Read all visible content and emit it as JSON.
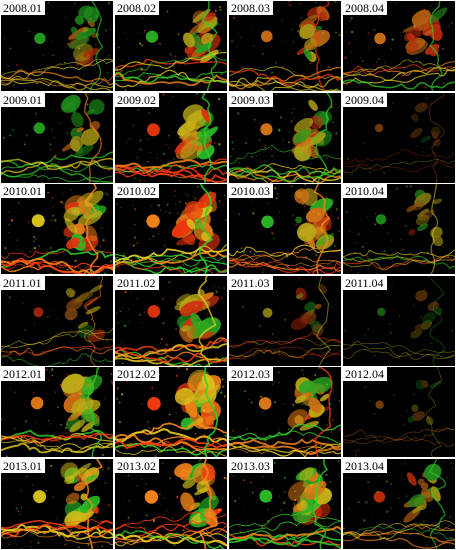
{
  "figure": {
    "panels": [
      {
        "label": "2008.01",
        "wetness": 0.55,
        "green": 0.35
      },
      {
        "label": "2008.02",
        "wetness": 0.7,
        "green": 0.45
      },
      {
        "label": "2008.03",
        "wetness": 0.6,
        "green": 0.2
      },
      {
        "label": "2008.04",
        "wetness": 0.6,
        "green": 0.15
      },
      {
        "label": "2009.01",
        "wetness": 0.55,
        "green": 0.75
      },
      {
        "label": "2009.02",
        "wetness": 0.8,
        "green": 0.45
      },
      {
        "label": "2009.03",
        "wetness": 0.7,
        "green": 0.55
      },
      {
        "label": "2009.04",
        "wetness": 0.05,
        "green": 0.3
      },
      {
        "label": "2010.01",
        "wetness": 0.85,
        "green": 0.25
      },
      {
        "label": "2010.02",
        "wetness": 0.9,
        "green": 0.3
      },
      {
        "label": "2010.03",
        "wetness": 0.75,
        "green": 0.3
      },
      {
        "label": "2010.04",
        "wetness": 0.4,
        "green": 0.5
      },
      {
        "label": "2011.01",
        "wetness": 0.35,
        "green": 0.3
      },
      {
        "label": "2011.02",
        "wetness": 0.75,
        "green": 0.35
      },
      {
        "label": "2011.03",
        "wetness": 0.3,
        "green": 0.3
      },
      {
        "label": "2011.04",
        "wetness": 0.08,
        "green": 0.6
      },
      {
        "label": "2012.01",
        "wetness": 0.75,
        "green": 0.35
      },
      {
        "label": "2012.02",
        "wetness": 0.9,
        "green": 0.3
      },
      {
        "label": "2012.03",
        "wetness": 0.75,
        "green": 0.3
      },
      {
        "label": "2012.04",
        "wetness": 0.06,
        "green": 0.3
      },
      {
        "label": "2013.01",
        "wetness": 0.85,
        "green": 0.4
      },
      {
        "label": "2013.02",
        "wetness": 0.9,
        "green": 0.35
      },
      {
        "label": "2013.03",
        "wetness": 0.8,
        "green": 0.45
      },
      {
        "label": "2013.04",
        "wetness": 0.55,
        "green": 0.55
      }
    ]
  },
  "colors": {
    "background": "#000000",
    "frame": "#ffffff",
    "red": "#ff3b10",
    "orange": "#ff8a1a",
    "yellow": "#e8d21e",
    "green": "#2fd02a"
  }
}
